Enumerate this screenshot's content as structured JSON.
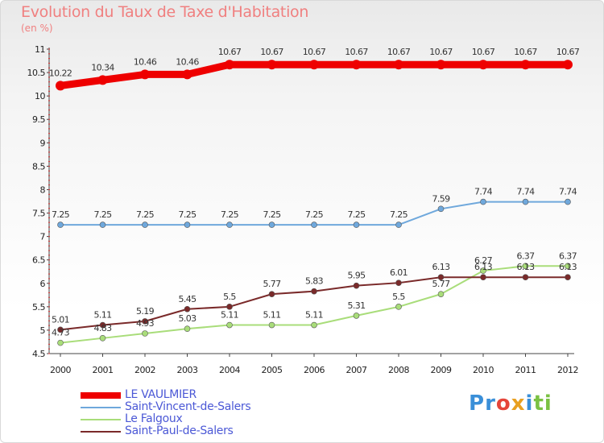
{
  "header": {
    "title": "Evolution du Taux de Taxe d'Habitation",
    "unit": "(en %)"
  },
  "chart_data": {
    "type": "line",
    "title": "Evolution du Taux de Taxe d'Habitation",
    "ylabel": "(en %)",
    "xlabel": "",
    "x": [
      "2000",
      "2001",
      "2002",
      "2003",
      "2004",
      "2005",
      "2006",
      "2007",
      "2008",
      "2009",
      "2010",
      "2011",
      "2012"
    ],
    "ylim": [
      4.5,
      11
    ],
    "y_ticks": [
      "4.5",
      "5",
      "5.5",
      "6",
      "6.5",
      "7",
      "7.5",
      "8",
      "8.5",
      "9",
      "9.5",
      "10",
      "10.5",
      "11"
    ],
    "grid": false,
    "legend_position": "bottom-left",
    "series": [
      {
        "name": "LE VAULMIER",
        "color": "#ee0000",
        "values": [
          10.22,
          10.34,
          10.46,
          10.46,
          10.67,
          10.67,
          10.67,
          10.67,
          10.67,
          10.67,
          10.67,
          10.67,
          10.67
        ],
        "labels": [
          "10.22",
          "10.34",
          "10.46",
          "10.46",
          "10.67",
          "10.67",
          "10.67",
          "10.67",
          "10.67",
          "10.67",
          "10.67",
          "10.67",
          "10.67"
        ]
      },
      {
        "name": "Saint-Vincent-de-Salers",
        "color": "#6fa8dc",
        "values": [
          7.25,
          7.25,
          7.25,
          7.25,
          7.25,
          7.25,
          7.25,
          7.25,
          7.25,
          7.59,
          7.74,
          7.74,
          7.74
        ],
        "labels": [
          "7.25",
          "7.25",
          "7.25",
          "7.25",
          "7.25",
          "7.25",
          "7.25",
          "7.25",
          "7.25",
          "7.59",
          "7.74",
          "7.74",
          "7.74"
        ]
      },
      {
        "name": "Le Falgoux",
        "color": "#a9dd7a",
        "values": [
          4.73,
          4.83,
          4.93,
          5.03,
          5.11,
          5.11,
          5.11,
          5.31,
          5.5,
          5.77,
          6.27,
          6.37,
          6.37
        ],
        "labels": [
          "4.73",
          "4.83",
          "4.93",
          "5.03",
          "5.11",
          "5.11",
          "5.11",
          "5.31",
          "5.5",
          "5.77",
          "6.27",
          "6.37",
          "6.37"
        ]
      },
      {
        "name": "Saint-Paul-de-Salers",
        "color": "#7a2a2a",
        "values": [
          5.01,
          5.11,
          5.19,
          5.45,
          5.5,
          5.77,
          5.83,
          5.95,
          6.01,
          6.13,
          6.13,
          6.13,
          6.13
        ],
        "labels": [
          "5.01",
          "5.11",
          "5.19",
          "5.45",
          "5.5",
          "5.77",
          "5.83",
          "5.95",
          "6.01",
          "6.13",
          "6.13",
          "6.13",
          "6.13"
        ]
      }
    ]
  },
  "legend": {
    "items": [
      {
        "label": "LE VAULMIER",
        "color": "#ee0000"
      },
      {
        "label": "Saint-Vincent-de-Salers",
        "color": "#6fa8dc"
      },
      {
        "label": "Le Falgoux",
        "color": "#a9dd7a"
      },
      {
        "label": "Saint-Paul-de-Salers",
        "color": "#7a2a2a"
      }
    ]
  },
  "brand": {
    "letters": [
      "P",
      "r",
      "o",
      "x",
      "i",
      "t",
      "i"
    ],
    "colors": [
      "#3a8fd8",
      "#3a8fd8",
      "#e5453a",
      "#e8a020",
      "#3a8fd8",
      "#7ac143",
      "#7ac143"
    ]
  }
}
